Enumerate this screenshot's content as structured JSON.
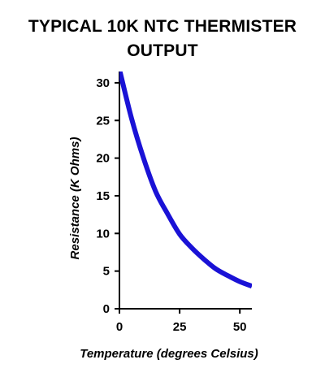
{
  "chart_data": {
    "type": "line",
    "title_lines": [
      "TYPICAL 10K NTC THERMISTER",
      "OUTPUT"
    ],
    "xlabel": "Temperature (degrees Celsius)",
    "ylabel": "Resistance (K Ohms)",
    "xlim": [
      0,
      55
    ],
    "ylim": [
      0,
      31.5
    ],
    "x_ticks": [
      0,
      25,
      50
    ],
    "y_ticks": [
      0,
      5,
      10,
      15,
      20,
      25,
      30
    ],
    "grid": false,
    "legend": "none",
    "series": [
      {
        "color": "#1a12d6",
        "x": [
          0,
          5,
          10,
          15,
          20,
          25,
          30,
          35,
          40,
          45,
          50,
          55
        ],
        "y": [
          31.8,
          25.3,
          20.0,
          15.6,
          12.6,
          9.9,
          8.1,
          6.6,
          5.3,
          4.4,
          3.6,
          3.0
        ]
      }
    ]
  }
}
